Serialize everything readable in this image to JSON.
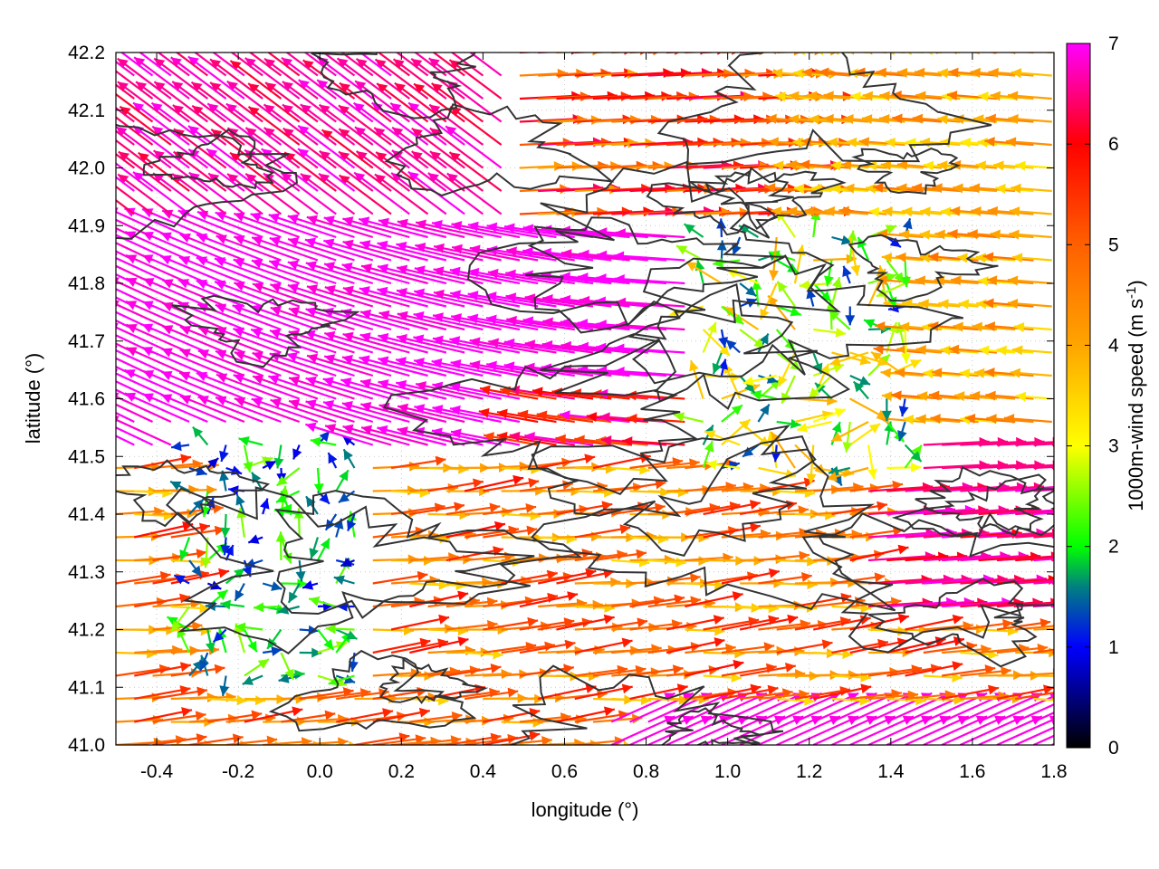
{
  "chart_data": {
    "type": "vector-field",
    "xlabel": "longitude (°)",
    "ylabel": "latitude (°)",
    "colorbar_label_main": "1000m-wind speed (m s",
    "colorbar_label_sup": "-1",
    "colorbar_label_end": ")",
    "xlim": [
      -0.5,
      1.8
    ],
    "ylim": [
      41.0,
      42.2
    ],
    "x_ticks": [
      -0.4,
      -0.2,
      0.0,
      0.2,
      0.4,
      0.6,
      0.8,
      1.0,
      1.2,
      1.4,
      1.6,
      1.8
    ],
    "x_tick_labels": [
      "-0.4",
      "-0.2",
      "0.0",
      "0.2",
      "0.4",
      "0.6",
      "0.8",
      "1.0",
      "1.2",
      "1.4",
      "1.6",
      "1.8"
    ],
    "y_ticks": [
      41.0,
      41.1,
      41.2,
      41.3,
      41.4,
      41.5,
      41.6,
      41.7,
      41.8,
      41.9,
      42.0,
      42.1,
      42.2
    ],
    "y_tick_labels": [
      "41.0",
      "41.1",
      "41.2",
      "41.3",
      "41.4",
      "41.5",
      "41.6",
      "41.7",
      "41.8",
      "41.9",
      "42.0",
      "42.1",
      "42.2"
    ],
    "colorbar_range": [
      0,
      7
    ],
    "colorbar_ticks": [
      0,
      1,
      2,
      3,
      4,
      5,
      6,
      7
    ],
    "colorbar_tick_labels": [
      "0",
      "1",
      "2",
      "3",
      "4",
      "5",
      "6",
      "7"
    ],
    "colormap_stops": [
      {
        "v": 0,
        "c": "#000000"
      },
      {
        "v": 1,
        "c": "#0000ff"
      },
      {
        "v": 1.6,
        "c": "#008080"
      },
      {
        "v": 2,
        "c": "#00ff00"
      },
      {
        "v": 3,
        "c": "#ffff00"
      },
      {
        "v": 4,
        "c": "#ffa500"
      },
      {
        "v": 5,
        "c": "#ff6000"
      },
      {
        "v": 6,
        "c": "#ff0000"
      },
      {
        "v": 7,
        "c": "#ff00ff"
      }
    ],
    "grid": "dotted",
    "contour_color": "#333333",
    "wind_regions": [
      {
        "region": "northwest",
        "lon": [
          -0.5,
          0.5
        ],
        "lat": [
          41.75,
          42.2
        ],
        "direction": "to-north-west",
        "speed": 7
      },
      {
        "region": "central-band",
        "lon": [
          -0.5,
          1.0
        ],
        "lat": [
          41.5,
          41.85
        ],
        "direction": "to-west",
        "speed": 7
      },
      {
        "region": "north-east",
        "lon": [
          0.5,
          1.8
        ],
        "lat": [
          41.9,
          42.2
        ],
        "direction": "to-east",
        "speed": 5.5
      },
      {
        "region": "east",
        "lon": [
          1.2,
          1.8
        ],
        "lat": [
          41.5,
          41.9
        ],
        "direction": "to-west",
        "speed": 4
      },
      {
        "region": "south-east",
        "lon": [
          1.3,
          1.8
        ],
        "lat": [
          41.2,
          41.5
        ],
        "direction": "to-east",
        "speed": 6.5
      },
      {
        "region": "south",
        "lon": [
          -0.5,
          1.8
        ],
        "lat": [
          41.0,
          41.45
        ],
        "direction": "to-east",
        "speed": 4.5
      },
      {
        "region": "calm-west",
        "lon": [
          -0.35,
          0.1
        ],
        "lat": [
          41.1,
          41.55
        ],
        "direction": "variable",
        "speed": 1.5
      },
      {
        "region": "calm-centre",
        "lon": [
          0.9,
          1.5
        ],
        "lat": [
          41.45,
          41.9
        ],
        "direction": "variable",
        "speed": 1.5
      }
    ]
  }
}
